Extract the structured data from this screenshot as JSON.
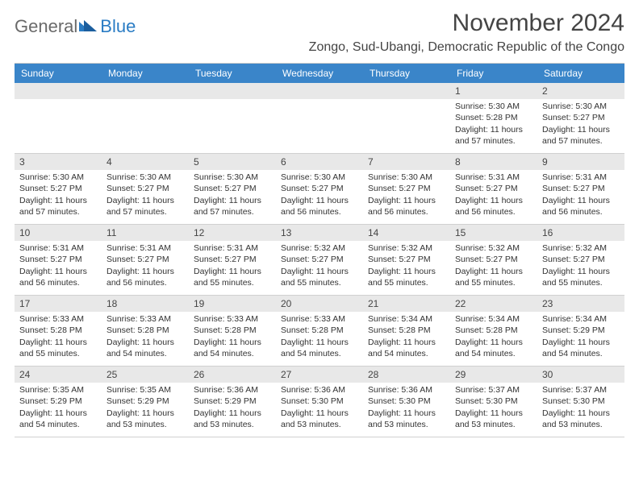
{
  "logo": {
    "general": "General",
    "blue": "Blue"
  },
  "title": "November 2024",
  "location": "Zongo, Sud-Ubangi, Democratic Republic of the Congo",
  "colors": {
    "header_bg": "#3a85c9",
    "header_text": "#ffffff",
    "daynum_bg": "#e8e8e8",
    "grid_border": "#d0d0d0",
    "text": "#333333",
    "title_color": "#444444"
  },
  "typography": {
    "title_fontsize": 30,
    "location_fontsize": 16,
    "dayhead_fontsize": 12,
    "cell_fontsize": 10.5
  },
  "day_headers": [
    "Sunday",
    "Monday",
    "Tuesday",
    "Wednesday",
    "Thursday",
    "Friday",
    "Saturday"
  ],
  "grid": {
    "columns": 7,
    "rows": 5,
    "leading_blanks": 5
  },
  "days": [
    {
      "n": "1",
      "sunrise": "Sunrise: 5:30 AM",
      "sunset": "Sunset: 5:28 PM",
      "daylight": "Daylight: 11 hours and 57 minutes."
    },
    {
      "n": "2",
      "sunrise": "Sunrise: 5:30 AM",
      "sunset": "Sunset: 5:27 PM",
      "daylight": "Daylight: 11 hours and 57 minutes."
    },
    {
      "n": "3",
      "sunrise": "Sunrise: 5:30 AM",
      "sunset": "Sunset: 5:27 PM",
      "daylight": "Daylight: 11 hours and 57 minutes."
    },
    {
      "n": "4",
      "sunrise": "Sunrise: 5:30 AM",
      "sunset": "Sunset: 5:27 PM",
      "daylight": "Daylight: 11 hours and 57 minutes."
    },
    {
      "n": "5",
      "sunrise": "Sunrise: 5:30 AM",
      "sunset": "Sunset: 5:27 PM",
      "daylight": "Daylight: 11 hours and 57 minutes."
    },
    {
      "n": "6",
      "sunrise": "Sunrise: 5:30 AM",
      "sunset": "Sunset: 5:27 PM",
      "daylight": "Daylight: 11 hours and 56 minutes."
    },
    {
      "n": "7",
      "sunrise": "Sunrise: 5:30 AM",
      "sunset": "Sunset: 5:27 PM",
      "daylight": "Daylight: 11 hours and 56 minutes."
    },
    {
      "n": "8",
      "sunrise": "Sunrise: 5:31 AM",
      "sunset": "Sunset: 5:27 PM",
      "daylight": "Daylight: 11 hours and 56 minutes."
    },
    {
      "n": "9",
      "sunrise": "Sunrise: 5:31 AM",
      "sunset": "Sunset: 5:27 PM",
      "daylight": "Daylight: 11 hours and 56 minutes."
    },
    {
      "n": "10",
      "sunrise": "Sunrise: 5:31 AM",
      "sunset": "Sunset: 5:27 PM",
      "daylight": "Daylight: 11 hours and 56 minutes."
    },
    {
      "n": "11",
      "sunrise": "Sunrise: 5:31 AM",
      "sunset": "Sunset: 5:27 PM",
      "daylight": "Daylight: 11 hours and 56 minutes."
    },
    {
      "n": "12",
      "sunrise": "Sunrise: 5:31 AM",
      "sunset": "Sunset: 5:27 PM",
      "daylight": "Daylight: 11 hours and 55 minutes."
    },
    {
      "n": "13",
      "sunrise": "Sunrise: 5:32 AM",
      "sunset": "Sunset: 5:27 PM",
      "daylight": "Daylight: 11 hours and 55 minutes."
    },
    {
      "n": "14",
      "sunrise": "Sunrise: 5:32 AM",
      "sunset": "Sunset: 5:27 PM",
      "daylight": "Daylight: 11 hours and 55 minutes."
    },
    {
      "n": "15",
      "sunrise": "Sunrise: 5:32 AM",
      "sunset": "Sunset: 5:27 PM",
      "daylight": "Daylight: 11 hours and 55 minutes."
    },
    {
      "n": "16",
      "sunrise": "Sunrise: 5:32 AM",
      "sunset": "Sunset: 5:27 PM",
      "daylight": "Daylight: 11 hours and 55 minutes."
    },
    {
      "n": "17",
      "sunrise": "Sunrise: 5:33 AM",
      "sunset": "Sunset: 5:28 PM",
      "daylight": "Daylight: 11 hours and 55 minutes."
    },
    {
      "n": "18",
      "sunrise": "Sunrise: 5:33 AM",
      "sunset": "Sunset: 5:28 PM",
      "daylight": "Daylight: 11 hours and 54 minutes."
    },
    {
      "n": "19",
      "sunrise": "Sunrise: 5:33 AM",
      "sunset": "Sunset: 5:28 PM",
      "daylight": "Daylight: 11 hours and 54 minutes."
    },
    {
      "n": "20",
      "sunrise": "Sunrise: 5:33 AM",
      "sunset": "Sunset: 5:28 PM",
      "daylight": "Daylight: 11 hours and 54 minutes."
    },
    {
      "n": "21",
      "sunrise": "Sunrise: 5:34 AM",
      "sunset": "Sunset: 5:28 PM",
      "daylight": "Daylight: 11 hours and 54 minutes."
    },
    {
      "n": "22",
      "sunrise": "Sunrise: 5:34 AM",
      "sunset": "Sunset: 5:28 PM",
      "daylight": "Daylight: 11 hours and 54 minutes."
    },
    {
      "n": "23",
      "sunrise": "Sunrise: 5:34 AM",
      "sunset": "Sunset: 5:29 PM",
      "daylight": "Daylight: 11 hours and 54 minutes."
    },
    {
      "n": "24",
      "sunrise": "Sunrise: 5:35 AM",
      "sunset": "Sunset: 5:29 PM",
      "daylight": "Daylight: 11 hours and 54 minutes."
    },
    {
      "n": "25",
      "sunrise": "Sunrise: 5:35 AM",
      "sunset": "Sunset: 5:29 PM",
      "daylight": "Daylight: 11 hours and 53 minutes."
    },
    {
      "n": "26",
      "sunrise": "Sunrise: 5:36 AM",
      "sunset": "Sunset: 5:29 PM",
      "daylight": "Daylight: 11 hours and 53 minutes."
    },
    {
      "n": "27",
      "sunrise": "Sunrise: 5:36 AM",
      "sunset": "Sunset: 5:30 PM",
      "daylight": "Daylight: 11 hours and 53 minutes."
    },
    {
      "n": "28",
      "sunrise": "Sunrise: 5:36 AM",
      "sunset": "Sunset: 5:30 PM",
      "daylight": "Daylight: 11 hours and 53 minutes."
    },
    {
      "n": "29",
      "sunrise": "Sunrise: 5:37 AM",
      "sunset": "Sunset: 5:30 PM",
      "daylight": "Daylight: 11 hours and 53 minutes."
    },
    {
      "n": "30",
      "sunrise": "Sunrise: 5:37 AM",
      "sunset": "Sunset: 5:30 PM",
      "daylight": "Daylight: 11 hours and 53 minutes."
    }
  ]
}
